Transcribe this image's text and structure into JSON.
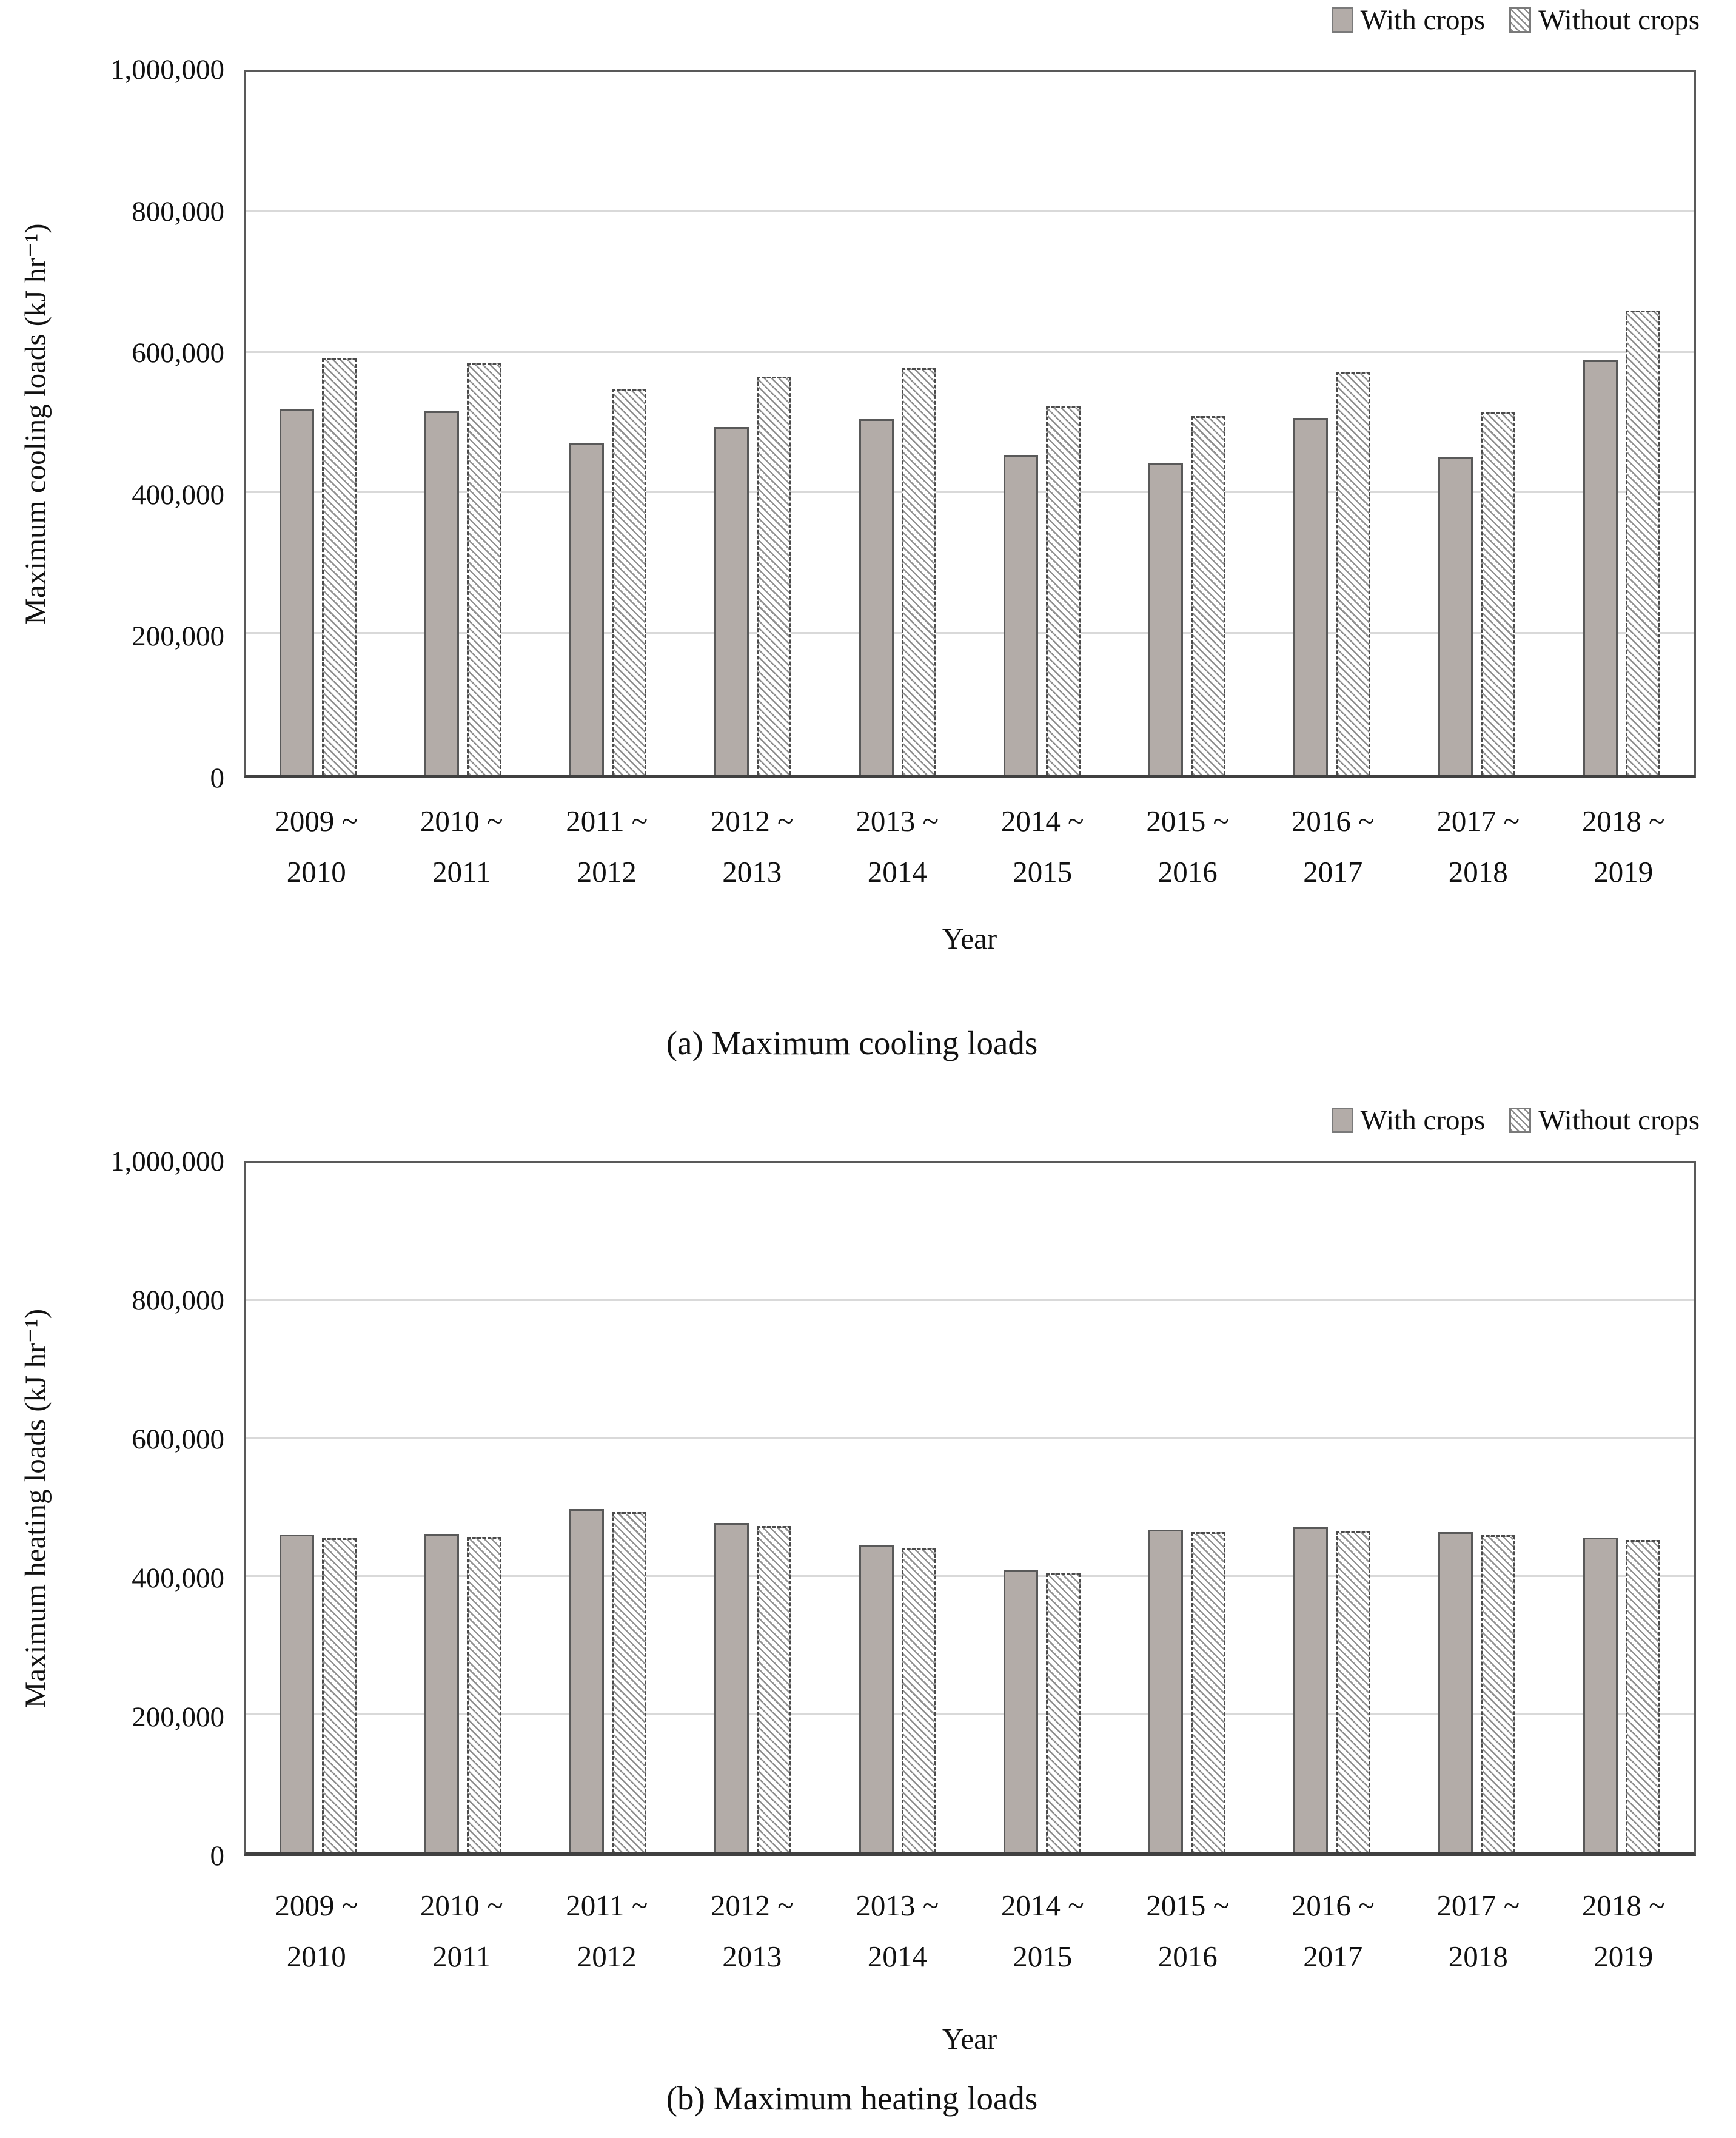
{
  "colors": {
    "solid_bar_fill": "#b3aca8",
    "bar_border": "#595959",
    "hatch_line": "#909090",
    "gridline": "#d9d9d9",
    "plot_border": "#595959",
    "text": "#111111",
    "background": "#ffffff"
  },
  "legend_labels": [
    "With crops",
    "Without crops"
  ],
  "chart_data": [
    {
      "type": "bar",
      "caption": "(a) Maximum cooling loads",
      "xlabel": "Year",
      "ylabel": "Maximum cooling loads (kJ hr⁻¹)",
      "ylim": [
        0,
        1000000
      ],
      "ytick_step": 200000,
      "yticks_labels": [
        "0",
        "200,000",
        "400,000",
        "600,000",
        "800,000",
        "1,000,000"
      ],
      "grid": "horizontal",
      "legend_position": "top-right",
      "categories": [
        "2009 ~ 2010",
        "2010 ~ 2011",
        "2011 ~ 2012",
        "2012 ~ 2013",
        "2013 ~ 2014",
        "2014 ~ 2015",
        "2015 ~ 2016",
        "2016 ~ 2017",
        "2017 ~ 2018",
        "2018 ~ 2019"
      ],
      "categories_two_line": [
        [
          "2009 ~",
          "2010"
        ],
        [
          "2010 ~",
          "2011"
        ],
        [
          "2011 ~",
          "2012"
        ],
        [
          "2012 ~",
          "2013"
        ],
        [
          "2013 ~",
          "2014"
        ],
        [
          "2014 ~",
          "2015"
        ],
        [
          "2015 ~",
          "2016"
        ],
        [
          "2016 ~",
          "2017"
        ],
        [
          "2017 ~",
          "2018"
        ],
        [
          "2018 ~",
          "2019"
        ]
      ],
      "series": [
        {
          "name": "With crops",
          "style": "solid-gray",
          "values": [
            519000,
            517000,
            471000,
            494000,
            506000,
            455000,
            443000,
            507000,
            452000,
            589000
          ]
        },
        {
          "name": "Without crops",
          "style": "diagonal-hatch",
          "values": [
            592000,
            586000,
            549000,
            566000,
            578000,
            525000,
            510000,
            573000,
            516000,
            660000
          ]
        }
      ]
    },
    {
      "type": "bar",
      "caption": "(b) Maximum heating loads",
      "xlabel": "Year",
      "ylabel": "Maximum heating loads (kJ hr⁻¹)",
      "ylim": [
        0,
        1000000
      ],
      "ytick_step": 200000,
      "yticks_labels": [
        "0",
        "200,000",
        "400,000",
        "600,000",
        "800,000",
        "1,000,000"
      ],
      "grid": "horizontal",
      "legend_position": "top-right",
      "categories": [
        "2009 ~ 2010",
        "2010 ~ 2011",
        "2011 ~ 2012",
        "2012 ~ 2013",
        "2013 ~ 2014",
        "2014 ~ 2015",
        "2015 ~ 2016",
        "2016 ~ 2017",
        "2017 ~ 2018",
        "2018 ~ 2019"
      ],
      "categories_two_line": [
        [
          "2009 ~",
          "2010"
        ],
        [
          "2010 ~",
          "2011"
        ],
        [
          "2011 ~",
          "2012"
        ],
        [
          "2012 ~",
          "2013"
        ],
        [
          "2013 ~",
          "2014"
        ],
        [
          "2014 ~",
          "2015"
        ],
        [
          "2015 ~",
          "2016"
        ],
        [
          "2016 ~",
          "2017"
        ],
        [
          "2017 ~",
          "2018"
        ],
        [
          "2018 ~",
          "2019"
        ]
      ],
      "series": [
        {
          "name": "With crops",
          "style": "solid-gray",
          "values": [
            461000,
            462000,
            498000,
            478000,
            445000,
            409000,
            468000,
            472000,
            465000,
            457000
          ]
        },
        {
          "name": "Without crops",
          "style": "diagonal-hatch",
          "values": [
            456000,
            458000,
            494000,
            474000,
            441000,
            405000,
            465000,
            467000,
            460000,
            453000
          ]
        }
      ]
    }
  ]
}
